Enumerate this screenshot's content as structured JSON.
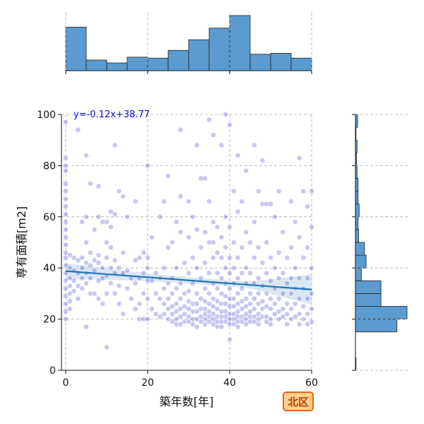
{
  "chart_data": {
    "type": "scatter",
    "xlabel": "築年数[年]",
    "ylabel": "専有面積[m2]",
    "xlim": [
      0,
      60
    ],
    "ylim": [
      0,
      100
    ],
    "x_ticks": [
      "0",
      "20",
      "40",
      "60"
    ],
    "y_ticks": [
      "0",
      "20",
      "40",
      "60",
      "80",
      "100"
    ],
    "grid": true,
    "regression": {
      "equation": "y=-0.12x+38.77",
      "slope": -0.12,
      "intercept": 38.77,
      "line_color": "#1f77b4",
      "band_color": "#b9d3ea"
    },
    "point_color": "#3a3acc",
    "badge": {
      "text": "北区",
      "fill": "#ffd08a",
      "border": "#e8641e",
      "color": "#b8420c"
    },
    "marginal_x_hist": {
      "bin_edges": [
        0,
        5,
        10,
        15,
        20,
        25,
        30,
        35,
        40,
        45,
        50,
        55,
        60
      ],
      "counts": [
        45,
        11,
        8,
        14,
        13,
        21,
        32,
        44,
        57,
        17,
        18,
        13,
        8
      ],
      "color": "#5b9bd0"
    },
    "marginal_y_hist": {
      "bin_edges": [
        0,
        5,
        10,
        15,
        20,
        25,
        30,
        35,
        40,
        45,
        50,
        55,
        60,
        65,
        70,
        75,
        80,
        85,
        90,
        95,
        100
      ],
      "counts": [
        1,
        0,
        0,
        78,
        97,
        48,
        48,
        11,
        20,
        17,
        6,
        5,
        7,
        5,
        5,
        3,
        2,
        3,
        1,
        4
      ],
      "color": "#5b9bd0"
    },
    "points": [
      [
        0,
        97
      ],
      [
        0,
        83
      ],
      [
        0,
        80
      ],
      [
        0,
        78
      ],
      [
        0,
        73
      ],
      [
        0,
        70
      ],
      [
        0,
        67
      ],
      [
        0,
        64
      ],
      [
        0,
        61
      ],
      [
        0,
        58
      ],
      [
        0,
        55
      ],
      [
        0,
        52
      ],
      [
        0,
        49
      ],
      [
        0,
        46
      ],
      [
        0,
        44
      ],
      [
        0,
        41
      ],
      [
        0,
        38
      ],
      [
        0,
        35
      ],
      [
        0,
        32
      ],
      [
        0,
        29
      ],
      [
        0,
        26
      ],
      [
        0,
        23
      ],
      [
        0,
        20
      ],
      [
        1,
        45
      ],
      [
        1,
        40
      ],
      [
        1,
        36
      ],
      [
        1,
        33
      ],
      [
        1,
        30
      ],
      [
        1,
        27
      ],
      [
        1,
        24
      ],
      [
        2,
        44
      ],
      [
        2,
        39
      ],
      [
        2,
        35
      ],
      [
        2,
        31
      ],
      [
        3,
        43
      ],
      [
        3,
        38
      ],
      [
        3,
        33
      ],
      [
        3,
        28
      ],
      [
        3,
        94
      ],
      [
        4,
        58
      ],
      [
        4,
        44
      ],
      [
        4,
        40
      ],
      [
        4,
        36
      ],
      [
        4,
        32
      ],
      [
        5,
        60
      ],
      [
        5,
        50
      ],
      [
        5,
        42
      ],
      [
        5,
        38
      ],
      [
        5,
        34
      ],
      [
        5,
        84
      ],
      [
        5,
        17
      ],
      [
        6,
        73
      ],
      [
        6,
        46
      ],
      [
        6,
        41
      ],
      [
        6,
        36
      ],
      [
        6,
        30
      ],
      [
        7,
        55
      ],
      [
        7,
        43
      ],
      [
        7,
        39
      ],
      [
        7,
        30
      ],
      [
        8,
        72
      ],
      [
        8,
        60
      ],
      [
        8,
        45
      ],
      [
        8,
        42
      ],
      [
        8,
        35
      ],
      [
        8,
        28
      ],
      [
        9,
        58
      ],
      [
        9,
        40
      ],
      [
        9,
        36
      ],
      [
        9,
        26
      ],
      [
        10,
        58
      ],
      [
        10,
        50
      ],
      [
        10,
        44
      ],
      [
        10,
        37
      ],
      [
        10,
        30
      ],
      [
        10,
        9
      ],
      [
        11,
        62
      ],
      [
        11,
        56
      ],
      [
        11,
        48
      ],
      [
        11,
        40
      ],
      [
        11,
        34
      ],
      [
        12,
        61
      ],
      [
        12,
        43
      ],
      [
        12,
        38
      ],
      [
        12,
        30
      ],
      [
        12,
        88
      ],
      [
        13,
        70
      ],
      [
        13,
        40
      ],
      [
        13,
        33
      ],
      [
        13,
        26
      ],
      [
        14,
        68
      ],
      [
        14,
        46
      ],
      [
        14,
        38
      ],
      [
        14,
        22
      ],
      [
        15,
        60
      ],
      [
        15,
        39
      ],
      [
        15,
        32
      ],
      [
        16,
        36
      ],
      [
        16,
        28
      ],
      [
        17,
        66
      ],
      [
        17,
        43
      ],
      [
        17,
        34
      ],
      [
        17,
        24
      ],
      [
        18,
        44
      ],
      [
        18,
        36
      ],
      [
        18,
        26
      ],
      [
        18,
        20
      ],
      [
        19,
        46
      ],
      [
        19,
        38
      ],
      [
        19,
        30
      ],
      [
        19,
        20
      ],
      [
        20,
        80
      ],
      [
        20,
        44
      ],
      [
        20,
        40
      ],
      [
        20,
        35
      ],
      [
        20,
        28
      ],
      [
        20,
        20
      ],
      [
        21,
        52
      ],
      [
        21,
        35
      ],
      [
        21,
        24
      ],
      [
        22,
        38
      ],
      [
        22,
        30
      ],
      [
        22,
        22
      ],
      [
        23,
        60
      ],
      [
        23,
        36
      ],
      [
        23,
        28
      ],
      [
        23,
        21
      ],
      [
        24,
        66
      ],
      [
        24,
        40
      ],
      [
        24,
        32
      ],
      [
        24,
        26
      ],
      [
        24,
        22
      ],
      [
        25,
        76
      ],
      [
        25,
        48
      ],
      [
        25,
        34
      ],
      [
        25,
        28
      ],
      [
        25,
        24
      ],
      [
        25,
        20
      ],
      [
        26,
        50
      ],
      [
        26,
        36
      ],
      [
        26,
        30
      ],
      [
        26,
        25
      ],
      [
        26,
        22
      ],
      [
        26,
        19
      ],
      [
        27,
        58
      ],
      [
        27,
        40
      ],
      [
        27,
        32
      ],
      [
        27,
        26
      ],
      [
        27,
        23
      ],
      [
        27,
        20
      ],
      [
        27,
        18
      ],
      [
        28,
        94
      ],
      [
        28,
        68
      ],
      [
        28,
        54
      ],
      [
        28,
        34
      ],
      [
        28,
        28
      ],
      [
        28,
        24
      ],
      [
        28,
        21
      ],
      [
        28,
        18
      ],
      [
        29,
        42
      ],
      [
        29,
        30
      ],
      [
        29,
        25
      ],
      [
        29,
        22
      ],
      [
        29,
        19
      ],
      [
        30,
        66
      ],
      [
        30,
        52
      ],
      [
        30,
        38
      ],
      [
        30,
        31
      ],
      [
        30,
        27
      ],
      [
        30,
        24
      ],
      [
        30,
        21
      ],
      [
        30,
        19
      ],
      [
        31,
        60
      ],
      [
        31,
        44
      ],
      [
        31,
        34
      ],
      [
        31,
        26
      ],
      [
        31,
        23
      ],
      [
        31,
        20
      ],
      [
        31,
        18
      ],
      [
        32,
        88
      ],
      [
        32,
        55
      ],
      [
        32,
        40
      ],
      [
        32,
        30
      ],
      [
        32,
        26
      ],
      [
        32,
        23
      ],
      [
        32,
        20
      ],
      [
        32,
        17
      ],
      [
        33,
        75
      ],
      [
        33,
        48
      ],
      [
        33,
        36
      ],
      [
        33,
        28
      ],
      [
        33,
        24
      ],
      [
        33,
        21
      ],
      [
        33,
        19
      ],
      [
        34,
        75
      ],
      [
        34,
        54
      ],
      [
        34,
        42
      ],
      [
        34,
        32
      ],
      [
        34,
        27
      ],
      [
        34,
        24
      ],
      [
        34,
        22
      ],
      [
        34,
        20
      ],
      [
        34,
        18
      ],
      [
        35,
        98
      ],
      [
        35,
        66
      ],
      [
        35,
        50
      ],
      [
        35,
        38
      ],
      [
        35,
        30
      ],
      [
        35,
        26
      ],
      [
        35,
        23
      ],
      [
        35,
        21
      ],
      [
        35,
        19
      ],
      [
        36,
        92
      ],
      [
        36,
        58
      ],
      [
        36,
        50
      ],
      [
        36,
        44
      ],
      [
        36,
        34
      ],
      [
        36,
        28
      ],
      [
        36,
        25
      ],
      [
        36,
        22
      ],
      [
        36,
        20
      ],
      [
        36,
        18
      ],
      [
        37,
        56
      ],
      [
        37,
        46
      ],
      [
        37,
        38
      ],
      [
        37,
        32
      ],
      [
        37,
        27
      ],
      [
        37,
        24
      ],
      [
        37,
        21
      ],
      [
        37,
        19
      ],
      [
        37,
        17
      ],
      [
        38,
        88
      ],
      [
        38,
        52
      ],
      [
        38,
        44
      ],
      [
        38,
        36
      ],
      [
        38,
        30
      ],
      [
        38,
        26
      ],
      [
        38,
        23
      ],
      [
        38,
        21
      ],
      [
        38,
        19
      ],
      [
        38,
        17
      ],
      [
        39,
        100
      ],
      [
        39,
        60
      ],
      [
        39,
        48
      ],
      [
        39,
        40
      ],
      [
        39,
        34
      ],
      [
        39,
        29
      ],
      [
        39,
        26
      ],
      [
        39,
        23
      ],
      [
        39,
        21
      ],
      [
        39,
        19
      ],
      [
        40,
        96
      ],
      [
        40,
        56
      ],
      [
        40,
        44
      ],
      [
        40,
        38
      ],
      [
        40,
        32
      ],
      [
        40,
        28
      ],
      [
        40,
        25
      ],
      [
        40,
        22
      ],
      [
        40,
        20
      ],
      [
        40,
        18
      ],
      [
        40,
        12
      ],
      [
        41,
        70
      ],
      [
        41,
        50
      ],
      [
        41,
        40
      ],
      [
        41,
        34
      ],
      [
        41,
        28
      ],
      [
        41,
        25
      ],
      [
        41,
        22
      ],
      [
        41,
        20
      ],
      [
        41,
        18
      ],
      [
        42,
        84
      ],
      [
        42,
        62
      ],
      [
        42,
        44
      ],
      [
        42,
        36
      ],
      [
        42,
        30
      ],
      [
        42,
        26
      ],
      [
        42,
        23
      ],
      [
        42,
        21
      ],
      [
        42,
        19
      ],
      [
        42,
        17
      ],
      [
        43,
        66
      ],
      [
        43,
        48
      ],
      [
        43,
        38
      ],
      [
        43,
        32
      ],
      [
        43,
        27
      ],
      [
        43,
        24
      ],
      [
        43,
        21
      ],
      [
        43,
        19
      ],
      [
        44,
        78
      ],
      [
        44,
        54
      ],
      [
        44,
        40
      ],
      [
        44,
        34
      ],
      [
        44,
        28
      ],
      [
        44,
        25
      ],
      [
        44,
        22
      ],
      [
        44,
        20
      ],
      [
        44,
        18
      ],
      [
        45,
        50
      ],
      [
        45,
        38
      ],
      [
        45,
        30
      ],
      [
        45,
        26
      ],
      [
        45,
        23
      ],
      [
        45,
        21
      ],
      [
        45,
        19
      ],
      [
        46,
        88
      ],
      [
        46,
        58
      ],
      [
        46,
        44
      ],
      [
        46,
        34
      ],
      [
        46,
        28
      ],
      [
        46,
        24
      ],
      [
        46,
        21
      ],
      [
        46,
        19
      ],
      [
        47,
        70
      ],
      [
        47,
        48
      ],
      [
        47,
        36
      ],
      [
        47,
        30
      ],
      [
        47,
        26
      ],
      [
        47,
        22
      ],
      [
        47,
        20
      ],
      [
        47,
        18
      ],
      [
        48,
        82
      ],
      [
        48,
        65
      ],
      [
        48,
        42
      ],
      [
        48,
        33
      ],
      [
        48,
        27
      ],
      [
        48,
        24
      ],
      [
        48,
        21
      ],
      [
        49,
        65
      ],
      [
        49,
        50
      ],
      [
        49,
        38
      ],
      [
        49,
        30
      ],
      [
        49,
        25
      ],
      [
        49,
        21
      ],
      [
        49,
        19
      ],
      [
        50,
        65
      ],
      [
        50,
        44
      ],
      [
        50,
        35
      ],
      [
        50,
        28
      ],
      [
        50,
        24
      ],
      [
        50,
        20
      ],
      [
        50,
        18
      ],
      [
        51,
        60
      ],
      [
        51,
        40
      ],
      [
        51,
        32
      ],
      [
        51,
        26
      ],
      [
        51,
        22
      ],
      [
        52,
        70
      ],
      [
        52,
        46
      ],
      [
        52,
        36
      ],
      [
        52,
        28
      ],
      [
        52,
        23
      ],
      [
        52,
        20
      ],
      [
        53,
        54
      ],
      [
        53,
        38
      ],
      [
        53,
        30
      ],
      [
        53,
        24
      ],
      [
        53,
        21
      ],
      [
        54,
        44
      ],
      [
        54,
        34
      ],
      [
        54,
        26
      ],
      [
        54,
        22
      ],
      [
        54,
        18
      ],
      [
        55,
        66
      ],
      [
        55,
        48
      ],
      [
        55,
        36
      ],
      [
        55,
        30
      ],
      [
        55,
        24
      ],
      [
        55,
        20
      ],
      [
        56,
        58
      ],
      [
        56,
        40
      ],
      [
        56,
        32
      ],
      [
        56,
        26
      ],
      [
        56,
        21
      ],
      [
        57,
        83
      ],
      [
        57,
        52
      ],
      [
        57,
        36
      ],
      [
        57,
        28
      ],
      [
        57,
        22
      ],
      [
        57,
        18
      ],
      [
        58,
        70
      ],
      [
        58,
        44
      ],
      [
        58,
        32
      ],
      [
        58,
        25
      ],
      [
        58,
        20
      ],
      [
        59,
        64
      ],
      [
        59,
        48
      ],
      [
        59,
        36
      ],
      [
        59,
        28
      ],
      [
        59,
        22
      ],
      [
        59,
        18
      ],
      [
        60,
        70
      ],
      [
        60,
        56
      ],
      [
        60,
        40
      ],
      [
        60,
        30
      ],
      [
        60,
        24
      ],
      [
        60,
        19
      ]
    ]
  }
}
